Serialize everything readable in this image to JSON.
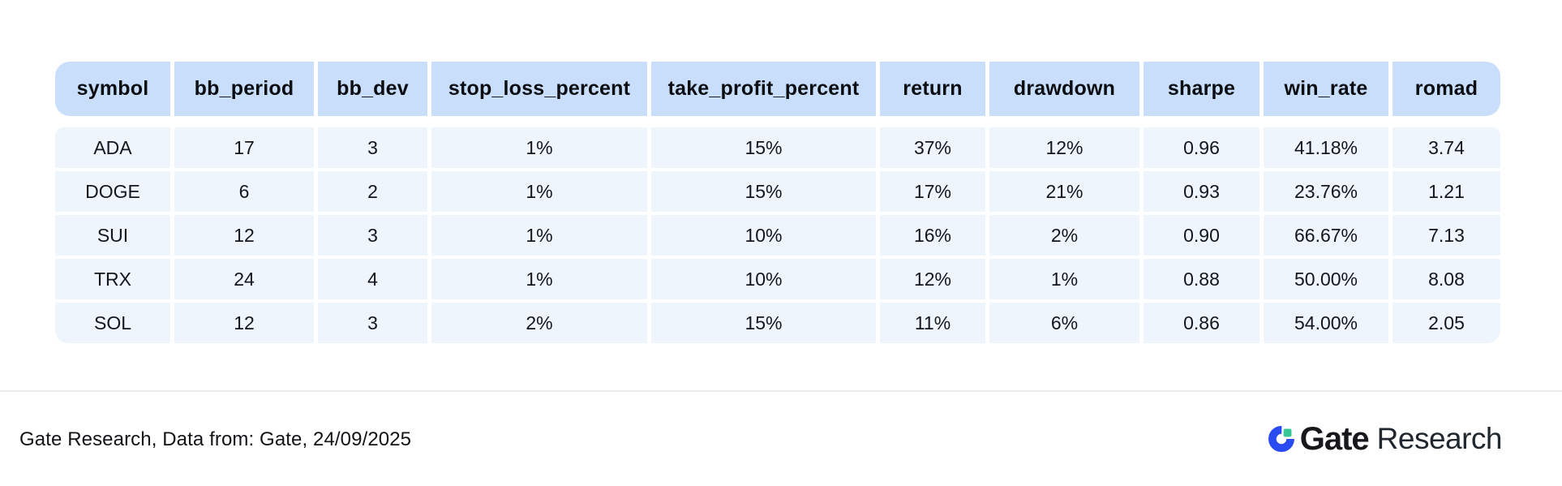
{
  "chart_data": {
    "type": "table",
    "columns": [
      "symbol",
      "bb_period",
      "bb_dev",
      "stop_loss_percent",
      "take_profit_percent",
      "return",
      "drawdown",
      "sharpe",
      "win_rate",
      "romad"
    ],
    "rows": [
      [
        "ADA",
        "17",
        "3",
        "1%",
        "15%",
        "37%",
        "12%",
        "0.96",
        "41.18%",
        "3.74"
      ],
      [
        "DOGE",
        "6",
        "2",
        "1%",
        "15%",
        "17%",
        "21%",
        "0.93",
        "23.76%",
        "1.21"
      ],
      [
        "SUI",
        "12",
        "3",
        "1%",
        "10%",
        "16%",
        "2%",
        "0.90",
        "66.67%",
        "7.13"
      ],
      [
        "TRX",
        "24",
        "4",
        "1%",
        "10%",
        "12%",
        "1%",
        "0.88",
        "50.00%",
        "8.08"
      ],
      [
        "SOL",
        "12",
        "3",
        "2%",
        "15%",
        "11%",
        "6%",
        "0.86",
        "54.00%",
        "2.05"
      ]
    ],
    "title": "",
    "legend": "none",
    "grid": "off"
  },
  "footer": {
    "source_note": "Gate Research, Data from: Gate, 24/09/2025"
  },
  "logo": {
    "brand": "Gate",
    "suffix": "Research",
    "icon": "gate-logo-icon"
  },
  "colors": {
    "header_bg": "#c8defa",
    "row_bg": "#eff5fc",
    "header_text": "#0b0d12",
    "cell_text": "#14161a",
    "divider": "#ececec",
    "logo_blue": "#2b4bf2",
    "logo_green": "#35c796",
    "logo_text": "#17181c"
  }
}
